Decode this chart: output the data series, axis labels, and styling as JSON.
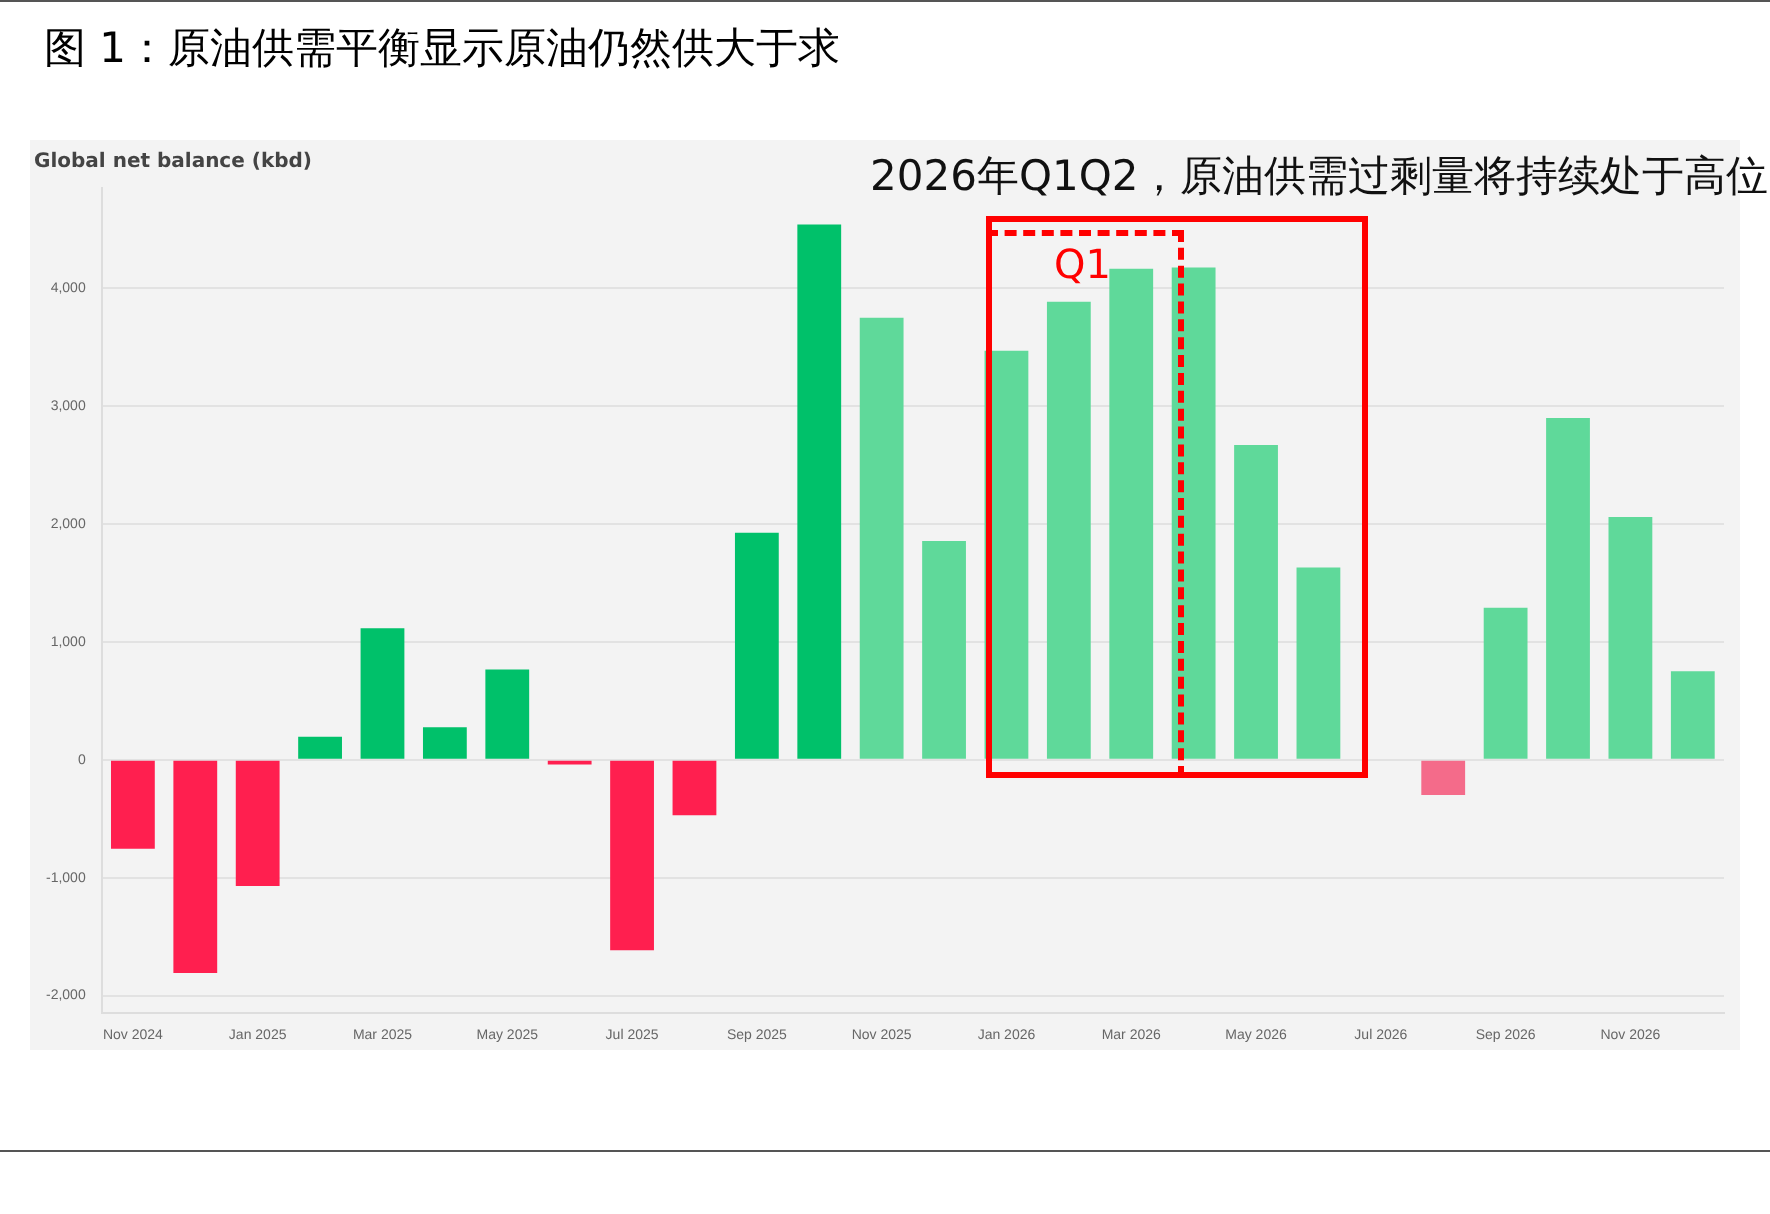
{
  "chart_data": {
    "type": "bar",
    "title": "图 1：原油供需平衡显示原油仍然供大于求",
    "ylabel": "Global net balance (kbd)",
    "categories": [
      "Nov 2024",
      null,
      "Jan 2025",
      null,
      "Mar 2025",
      null,
      "May 2025",
      null,
      "Jul 2025",
      null,
      "Sep 2025",
      null,
      "Nov 2025",
      null,
      "Jan 2026",
      null,
      "Mar 2026",
      null,
      "May 2026",
      null,
      "Jul 2026",
      null,
      "Sep 2026",
      null,
      "Nov 2026",
      null
    ],
    "values": [
      -755,
      -1810,
      -1070,
      195,
      1115,
      275,
      765,
      -40,
      -1615,
      -470,
      1925,
      4540,
      3750,
      1855,
      3470,
      3885,
      4165,
      4175,
      2670,
      1630,
      null,
      -300,
      1290,
      2900,
      2060,
      750
    ],
    "colors": [
      "#ff1f4f",
      "#ff1f4f",
      "#ff1f4f",
      "#00c16a",
      "#00c16a",
      "#00c16a",
      "#00c16a",
      "#ff1f4f",
      "#ff1f4f",
      "#ff1f4f",
      "#00c16a",
      "#00c16a",
      "#5fd99a",
      "#5fd99a",
      "#5fd99a",
      "#5fd99a",
      "#5fd99a",
      "#5fd99a",
      "#5fd99a",
      "#5fd99a",
      "#f46b8a",
      "#f46b8a",
      "#5fd99a",
      "#5fd99a",
      "#5fd99a",
      "#5fd99a"
    ],
    "ylim": [
      -2150,
      4850
    ],
    "yticks": [
      {
        "value": -2000,
        "label": "-2,000"
      },
      {
        "value": -1000,
        "label": "-1,000"
      },
      0,
      {
        "value": 1000,
        "label": "1,000"
      },
      {
        "value": 2000,
        "label": "2,000"
      },
      {
        "value": 3000,
        "label": "3,000"
      },
      {
        "value": 4000,
        "label": "4,000"
      }
    ],
    "grid": "y",
    "legend": false,
    "annotations": [
      "2026年Q1Q2，原油供需过剩量将持续处于高位",
      "Q1"
    ]
  }
}
